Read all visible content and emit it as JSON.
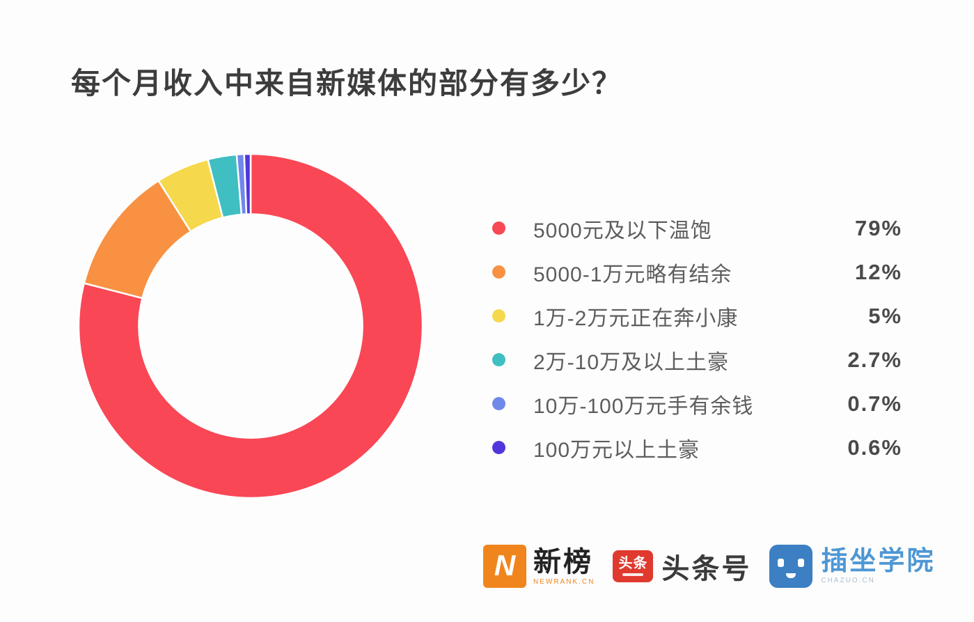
{
  "page": {
    "background": "#fdfdfd"
  },
  "title": "每个月收入中来自新媒体的部分有多少？",
  "chart_data": {
    "type": "pie",
    "subtype": "donut",
    "title": "每个月收入中来自新媒体的部分有多少？",
    "categories": [
      "5000元及以下温饱",
      "5000-1万元略有结余",
      "1万-2万元正在奔小康",
      "2万-10万及以上土豪",
      "10万-100万元手有余钱",
      "100万元以上土豪"
    ],
    "values": [
      79,
      12,
      5,
      2.7,
      0.7,
      0.6
    ],
    "unit": "%",
    "colors": [
      "#f94756",
      "#f89142",
      "#f6d84d",
      "#3fbfc1",
      "#7188eb",
      "#5036dd"
    ],
    "start_angle_deg": 0,
    "direction": "clockwise",
    "inner_radius_ratio": 0.65,
    "slice_separator_color": "#ffffff",
    "legend_position": "right"
  },
  "legend": {
    "items": [
      {
        "label": "5000元及以下温饱",
        "value": "79%",
        "color": "#f94756"
      },
      {
        "label": "5000-1万元略有结余",
        "value": "12%",
        "color": "#f89142"
      },
      {
        "label": "1万-2万元正在奔小康",
        "value": "5%",
        "color": "#f6d84d"
      },
      {
        "label": "2万-10万及以上土豪",
        "value": "2.7%",
        "color": "#3fbfc1"
      },
      {
        "label": "10万-100万元手有余钱",
        "value": "0.7%",
        "color": "#7188eb"
      },
      {
        "label": "100万元以上土豪",
        "value": "0.6%",
        "color": "#5036dd"
      }
    ]
  },
  "footer": {
    "newrank": {
      "icon_letter": "N",
      "name": "新榜",
      "subtext": "NEWRANK.CN",
      "icon_color": "#f0851d"
    },
    "toutiao": {
      "icon_text": "头条",
      "name": "头条号",
      "icon_color": "#e0392e"
    },
    "chazuo": {
      "name": "插坐学院",
      "subtext": "CHAZUO.CN",
      "icon_color": "#3c7fc2"
    }
  }
}
